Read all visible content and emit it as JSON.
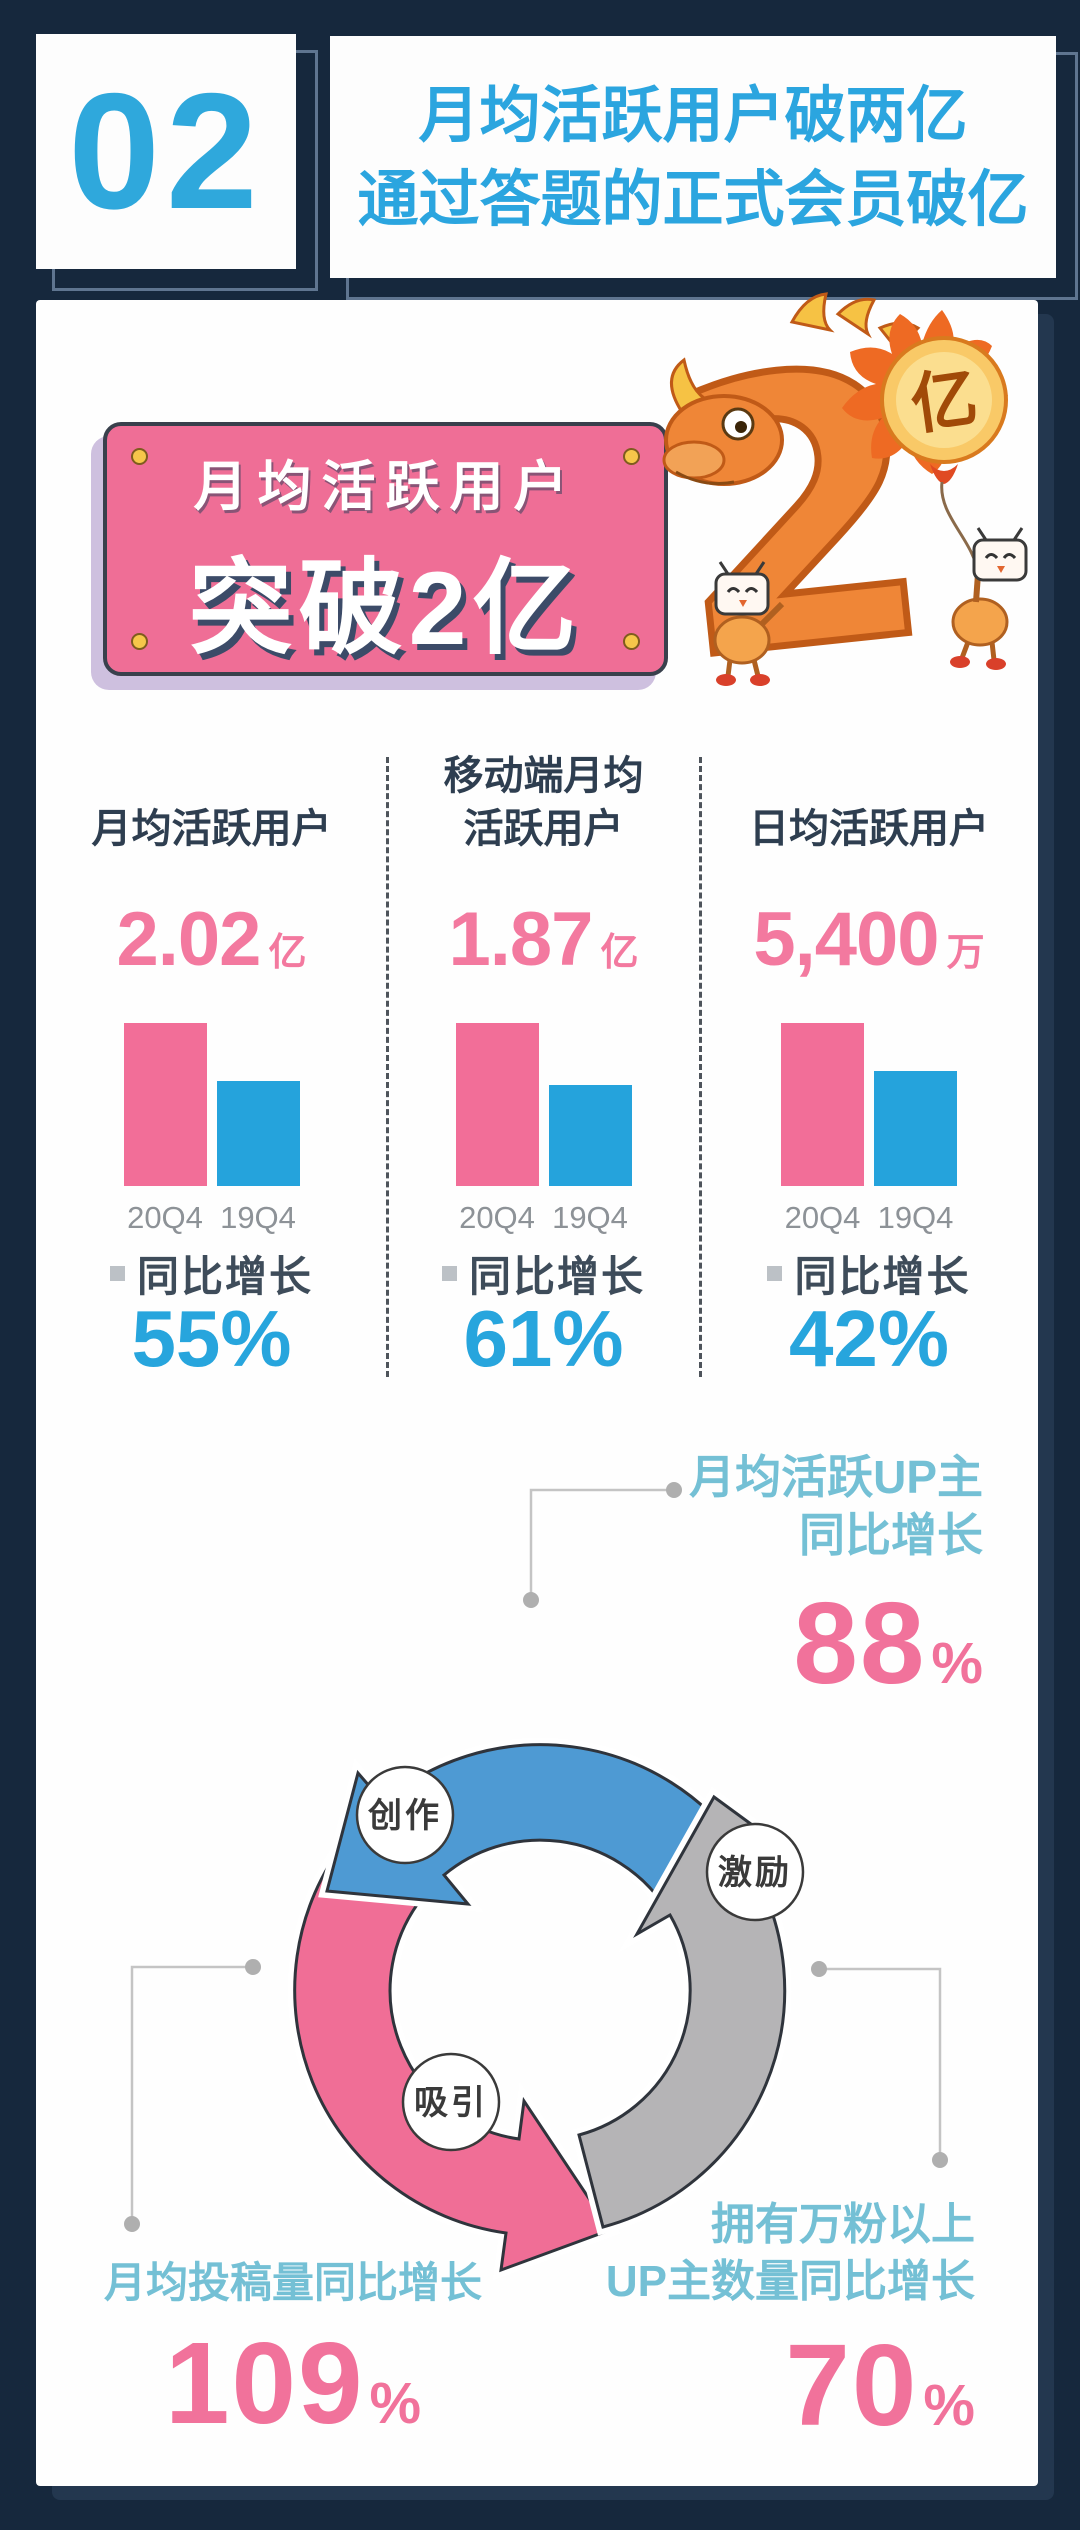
{
  "header": {
    "number": "02",
    "title_line1": "月均活跃用户破两亿",
    "title_line2": "通过答题的正式会员破亿"
  },
  "badge": {
    "line1": "月均活跃用户",
    "line2": "突破2亿"
  },
  "stats_section": {
    "growth_label": "同比增长"
  },
  "illustration": {
    "balloon_char": "亿"
  },
  "cycle": {
    "nodes": [
      "创作",
      "激励",
      "吸引"
    ],
    "top": {
      "line1": "月均活跃UP主",
      "line2": "同比增长",
      "value": "88",
      "unit": "%"
    },
    "bottom_left": {
      "line1": "月均投稿量同比增长",
      "value": "109",
      "unit": "%"
    },
    "bottom_right": {
      "line1": "拥有万粉以上",
      "line2": "UP主数量同比增长",
      "value": "70",
      "unit": "%"
    }
  },
  "colors": {
    "page_bg": "#16283D",
    "accent_blue": "#27A5DD",
    "number_pink": "#F3799F",
    "badge_pink": "#EF6E96",
    "bar_pink": "#F26E98",
    "bar_blue": "#25A3DC",
    "teal_text": "#74C0D5",
    "arrow_blue": "#4E9AD3",
    "arrow_pink": "#F06E96",
    "arrow_gray": "#B5B4B6"
  },
  "chart_data": [
    {
      "type": "bar",
      "title": "月均活跃用户",
      "categories": [
        "20Q4",
        "19Q4"
      ],
      "values": [
        2.02,
        1.3
      ],
      "unit": "亿",
      "value_label": "2.02",
      "growth": "55%",
      "series_colors": [
        "#F26E98",
        "#25A3DC"
      ]
    },
    {
      "type": "bar",
      "title": "移动端月均\n活跃用户",
      "categories": [
        "20Q4",
        "19Q4"
      ],
      "values": [
        1.87,
        1.16
      ],
      "unit": "亿",
      "value_label": "1.87",
      "growth": "61%",
      "series_colors": [
        "#F26E98",
        "#25A3DC"
      ]
    },
    {
      "type": "bar",
      "title": "日均活跃用户",
      "categories": [
        "20Q4",
        "19Q4"
      ],
      "values": [
        5400,
        3800
      ],
      "unit": "万",
      "value_label": "5,400",
      "growth": "42%",
      "series_colors": [
        "#F26E98",
        "#25A3DC"
      ]
    },
    {
      "type": "cycle-diagram",
      "nodes": [
        "创作",
        "激励",
        "吸引"
      ],
      "stats": [
        {
          "label": "月均活跃UP主同比增长",
          "value": "88%"
        },
        {
          "label": "月均投稿量同比增长",
          "value": "109%"
        },
        {
          "label": "拥有万粉以上UP主数量同比增长",
          "value": "70%"
        }
      ]
    }
  ]
}
